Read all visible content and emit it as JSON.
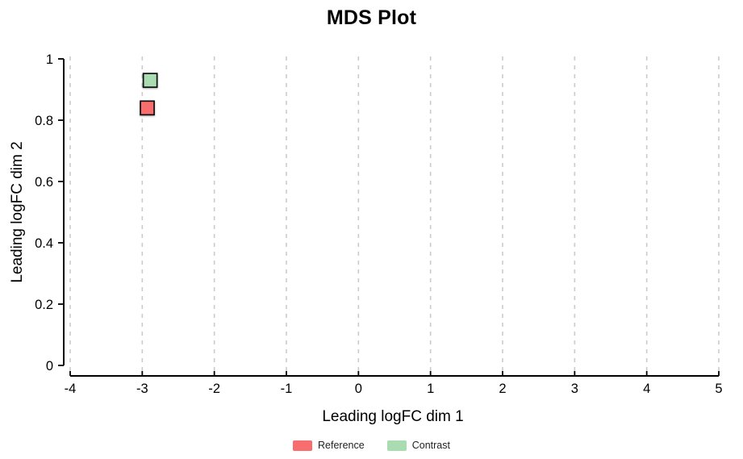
{
  "chart_data": {
    "type": "scatter",
    "title": "MDS Plot",
    "xlabel": "Leading logFC dim 1",
    "ylabel": "Leading logFC dim 2",
    "xlim": [
      -4,
      5
    ],
    "ylim": [
      0,
      1
    ],
    "xticks": [
      -4,
      -3,
      -2,
      -1,
      0,
      1,
      2,
      3,
      4,
      5
    ],
    "xtick_labels": [
      "-4",
      "-3",
      "-2",
      "-1",
      "0",
      "1",
      "2",
      "3",
      "4",
      "5"
    ],
    "yticks": [
      0,
      0.2,
      0.4,
      0.6,
      0.8,
      1
    ],
    "ytick_labels": [
      "0",
      "0.2",
      "0.4",
      "0.6",
      "0.8",
      "1"
    ],
    "grid": "vertical-dashed-only",
    "legend_position": "bottom-center",
    "series": [
      {
        "name": "Reference",
        "marker": "square",
        "color": "#f86e6e",
        "stroke": "#111111",
        "points": [
          {
            "x": -2.93,
            "y": 0.84
          }
        ]
      },
      {
        "name": "Contrast",
        "marker": "square",
        "color": "#aadcb2",
        "stroke": "#111111",
        "points": [
          {
            "x": -2.89,
            "y": 0.93
          }
        ]
      }
    ],
    "colors": {
      "grid": "#cbcbcb",
      "axis": "#000000",
      "text": "#000000",
      "background": "#ffffff"
    }
  }
}
